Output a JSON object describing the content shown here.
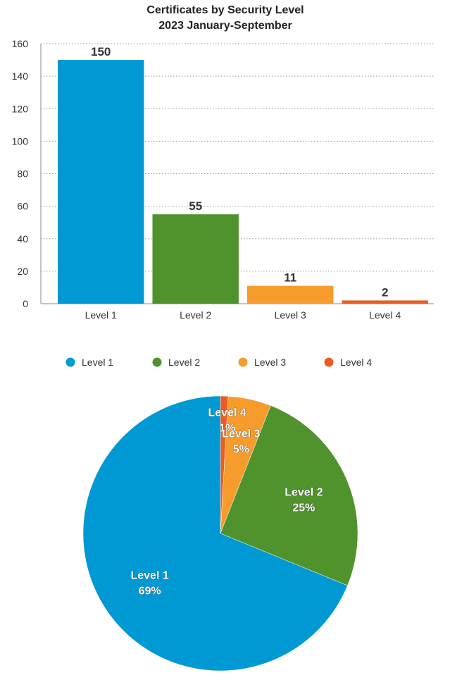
{
  "chart_data": [
    {
      "type": "bar",
      "title": "Certificates by Security Level",
      "subtitle": "2023 January-September",
      "categories": [
        "Level 1",
        "Level 2",
        "Level 3",
        "Level 4"
      ],
      "values": [
        150,
        55,
        11,
        2
      ],
      "data_labels": [
        "150",
        "55",
        "11",
        "2"
      ],
      "colors": [
        "#0099d4",
        "#50922b",
        "#f59c2c",
        "#ee5b22"
      ],
      "ylim": [
        0,
        160
      ],
      "yticks": [
        0,
        20,
        40,
        60,
        80,
        100,
        120,
        140,
        160
      ],
      "grid": true,
      "xlabel": "",
      "ylabel": ""
    },
    {
      "type": "pie",
      "categories": [
        "Level 1",
        "Level 2",
        "Level 3",
        "Level 4"
      ],
      "values": [
        150,
        55,
        11,
        2
      ],
      "percent_labels": [
        "69%",
        "25%",
        "5%",
        "1%"
      ],
      "colors": [
        "#0099d4",
        "#50922b",
        "#f59c2c",
        "#ee5b22"
      ],
      "legend": {
        "placement": "between-charts",
        "entries": [
          "Level 1",
          "Level 2",
          "Level 3",
          "Level 4"
        ]
      }
    }
  ]
}
